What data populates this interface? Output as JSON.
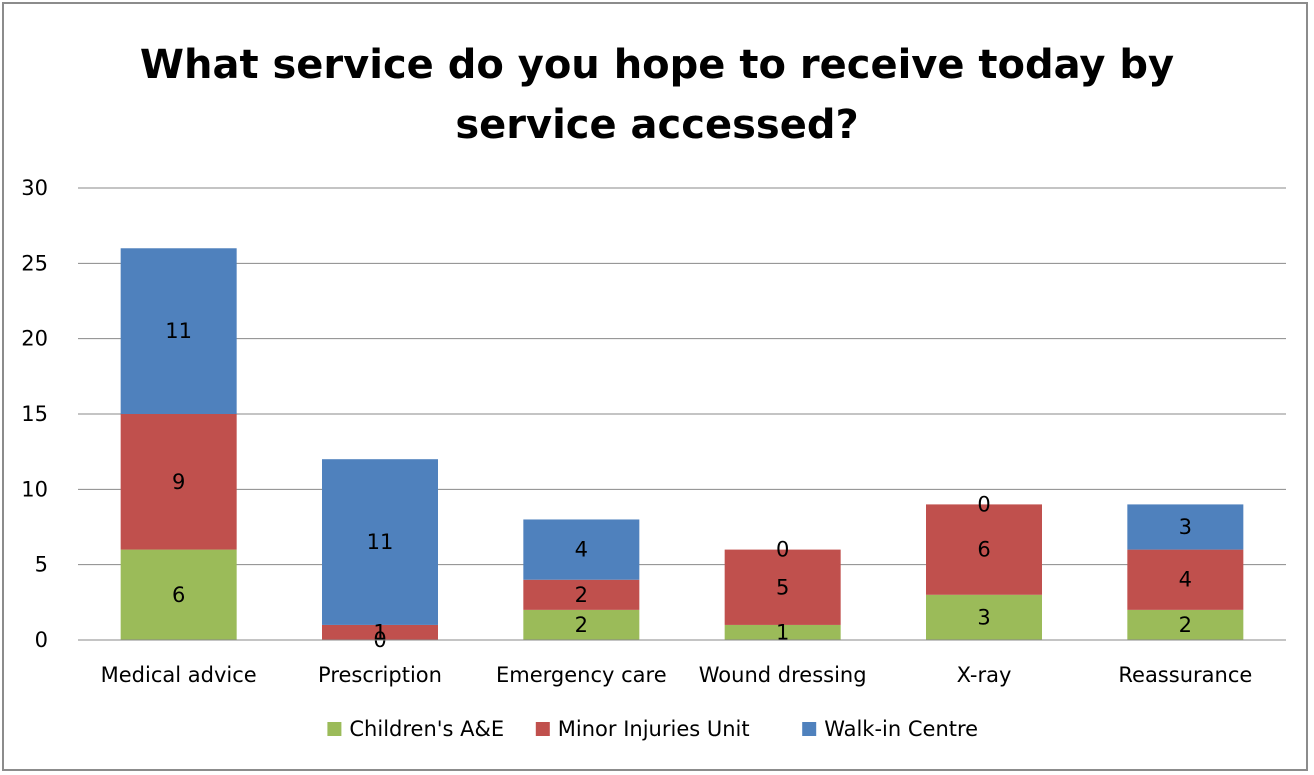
{
  "chart_data": {
    "type": "bar",
    "stacked": true,
    "title": "What service do you hope to receive today by service accessed?",
    "title_lines": [
      "What service do you hope to receive today by",
      "service accessed?"
    ],
    "categories": [
      "Medical advice",
      "Prescription",
      "Emergency care",
      "Wound dressing",
      "X-ray",
      "Reassurance"
    ],
    "series": [
      {
        "name": "Children's A&E",
        "color": "#9bbb59",
        "values": [
          6,
          0,
          2,
          1,
          3,
          2
        ]
      },
      {
        "name": "Minor Injuries Unit",
        "color": "#c0504d",
        "values": [
          9,
          1,
          2,
          5,
          6,
          4
        ]
      },
      {
        "name": "Walk-in Centre",
        "color": "#4f81bd",
        "values": [
          11,
          11,
          4,
          0,
          0,
          3
        ]
      }
    ],
    "ylim": [
      0,
      30
    ],
    "yticks": [
      0,
      5,
      10,
      15,
      20,
      25,
      30
    ],
    "grid": true,
    "data_labels": true,
    "legend_position": "bottom",
    "xlabel": "",
    "ylabel": ""
  }
}
